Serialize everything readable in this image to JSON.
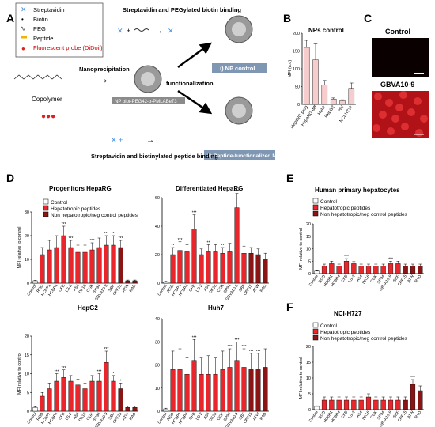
{
  "panel_labels": {
    "A": "A",
    "B": "B",
    "C": "C",
    "D": "D",
    "E": "E",
    "F": "F"
  },
  "schematic": {
    "legend": [
      "Streptavidin",
      "Biotin",
      "PEG",
      "Peptide",
      "Fluorescent probe (DiDoil)"
    ],
    "top_caption": "Streptavidin and PEGylated biotin binding",
    "bottom_caption": "Streptavidin and biotinylated peptide binding",
    "nanoprecipitation": "Nanoprecipitation",
    "functionalization": "functionalization",
    "copolymer": "Copolymer",
    "nanoparticle_label": "NP biot-PEG42-b-PMLABe73",
    "np_control": "i) NP control",
    "np_peptide": "ii) Peptide-functionalized NP"
  },
  "microscopy": {
    "control": "Control",
    "treated": "GBVA10-9"
  },
  "colors": {
    "control": "#ffffff",
    "hepatotropic": "#e8262b",
    "non_hepatotropic": "#8b1414",
    "np_bar": "#f6cccc",
    "dark_img": "#0a0000",
    "red_img": "#c8141a"
  },
  "chart_data": [
    {
      "id": "B",
      "type": "bar",
      "title": "NPs control",
      "ylabel": "MFI (a.u)",
      "ylim": [
        0,
        200
      ],
      "yticks": [
        0,
        50,
        100,
        150,
        200
      ],
      "categories": [
        "HepaRG prog",
        "HepaRG diff",
        "Huh7",
        "HepG2",
        "HH",
        "NCI-H727"
      ],
      "values": [
        160,
        125,
        55,
        15,
        10,
        45
      ],
      "errors": [
        20,
        45,
        12,
        3,
        3,
        15
      ]
    },
    {
      "id": "D1",
      "type": "bar",
      "title": "Progenitors HepaRG",
      "ylabel": "MFI relative to control",
      "ylim": [
        0,
        30
      ],
      "yticks": [
        0,
        10,
        20,
        30
      ],
      "categories": [
        "Control",
        "RGD",
        "HCBP1",
        "HCBP4",
        "CFB",
        "LS-2",
        "A54",
        "DK16",
        "CGK",
        "SP94",
        "GBVA10-9",
        "SBF",
        "CPF15",
        "ATW",
        "RAD"
      ],
      "values": [
        1,
        12,
        14,
        15,
        20,
        15,
        13,
        13,
        14,
        15,
        16,
        16,
        15,
        1,
        1
      ],
      "errors": [
        0.2,
        3,
        4,
        5,
        4,
        3,
        3,
        3,
        3,
        4,
        4,
        4,
        3,
        0.3,
        0.3
      ],
      "stars": [
        "",
        "",
        "",
        "",
        "***",
        "***",
        "",
        "",
        "***",
        "",
        "***",
        "***",
        "***",
        "",
        ""
      ],
      "groups": [
        "c",
        "h",
        "h",
        "h",
        "h",
        "h",
        "h",
        "h",
        "h",
        "h",
        "h",
        "h",
        "n",
        "n",
        "n"
      ]
    },
    {
      "id": "D2",
      "type": "bar",
      "title": "Differentiated HepaRG",
      "ylabel": "",
      "ylim": [
        0,
        60
      ],
      "yticks": [
        0,
        20,
        40,
        60
      ],
      "categories": [
        "Control",
        "RGD",
        "HCBP1",
        "HCBP4",
        "CFB",
        "LS-2",
        "A54",
        "DK16",
        "CGK",
        "SP94",
        "GBVA10-9",
        "SBF",
        "CPF15",
        "ATW",
        "RAD"
      ],
      "values": [
        1,
        20,
        23,
        22,
        38,
        20,
        22,
        22,
        21,
        22,
        53,
        21,
        21,
        20,
        17
      ],
      "errors": [
        0.3,
        5,
        6,
        5,
        10,
        4,
        5,
        5,
        4,
        6,
        10,
        5,
        4,
        4,
        4
      ],
      "stars": [
        "",
        "**",
        "***",
        "",
        "***",
        "",
        "**",
        "",
        "**",
        "",
        "***",
        "",
        "",
        "",
        ""
      ],
      "groups": [
        "c",
        "h",
        "h",
        "h",
        "h",
        "h",
        "h",
        "h",
        "h",
        "h",
        "h",
        "h",
        "n",
        "n",
        "n"
      ]
    },
    {
      "id": "D3",
      "type": "bar",
      "title": "HepG2",
      "ylabel": "MFI relative to control",
      "ylim": [
        0,
        20
      ],
      "yticks": [
        0,
        5,
        10,
        15,
        20
      ],
      "categories": [
        "Control",
        "RGD",
        "HCBP1",
        "HCBP4",
        "CFB",
        "LS-2",
        "A54",
        "DK16",
        "CGK",
        "SP94",
        "GBVA10-9",
        "SBF",
        "CPF15",
        "ATW",
        "RAD"
      ],
      "values": [
        1,
        4,
        6,
        8,
        9,
        8,
        7,
        6,
        8,
        8,
        13,
        8,
        6,
        1,
        1
      ],
      "errors": [
        0.2,
        1,
        1.5,
        2,
        2,
        1.5,
        1.5,
        1.5,
        1.5,
        2,
        3,
        1.5,
        1.5,
        0.3,
        0.3
      ],
      "stars": [
        "",
        "",
        "",
        "***",
        "***",
        "",
        "",
        "",
        "",
        "***",
        "***",
        "*",
        "*",
        "",
        ""
      ],
      "groups": [
        "c",
        "h",
        "h",
        "h",
        "h",
        "h",
        "h",
        "h",
        "h",
        "h",
        "h",
        "h",
        "n",
        "n",
        "n"
      ]
    },
    {
      "id": "D4",
      "type": "bar",
      "title": "Huh7",
      "ylabel": "",
      "ylim": [
        0,
        40
      ],
      "yticks": [
        0,
        10,
        20,
        30,
        40
      ],
      "categories": [
        "Control",
        "RGD",
        "HCBP1",
        "HCBP4",
        "CFB",
        "LS-2",
        "A54",
        "DK16",
        "CGK",
        "SP94",
        "GBVA10-9",
        "SBF",
        "CPF15",
        "ATW",
        "RAD"
      ],
      "values": [
        1,
        18,
        18,
        16,
        22,
        16,
        16,
        16,
        18,
        19,
        22,
        19,
        18,
        18,
        19
      ],
      "errors": [
        0.3,
        8,
        9,
        7,
        9,
        7,
        8,
        7,
        8,
        8,
        8,
        8,
        7,
        7,
        8
      ],
      "stars": [
        "",
        "",
        "",
        "",
        "***",
        "",
        "",
        "",
        "",
        "***",
        "***",
        "***",
        "***",
        "***",
        ""
      ],
      "groups": [
        "c",
        "h",
        "h",
        "h",
        "h",
        "h",
        "h",
        "h",
        "h",
        "h",
        "h",
        "h",
        "n",
        "n",
        "n"
      ]
    },
    {
      "id": "E",
      "type": "bar",
      "title": "Human primary hepatocytes",
      "ylabel": "MFI relative to control",
      "ylim": [
        0,
        20
      ],
      "yticks": [
        0,
        5,
        10,
        15,
        20
      ],
      "categories": [
        "Control",
        "RGD",
        "HCBP1",
        "HCBP4",
        "CFB",
        "LS-2",
        "A54",
        "DK16",
        "CGK",
        "SP94",
        "GBVA10-9",
        "SBF",
        "CPF15",
        "ATW",
        "RAD"
      ],
      "values": [
        1,
        3,
        4,
        3,
        5,
        4,
        3,
        3,
        3,
        3,
        4,
        4,
        3,
        3,
        3
      ],
      "errors": [
        0.2,
        0.8,
        1,
        0.8,
        1,
        0.8,
        0.8,
        0.8,
        0.8,
        0.8,
        1,
        1,
        0.8,
        0.8,
        0.8
      ],
      "stars": [
        "",
        "",
        "",
        "",
        "***",
        "",
        "",
        "",
        "",
        "",
        "***",
        "",
        "",
        "",
        ""
      ],
      "groups": [
        "c",
        "h",
        "h",
        "h",
        "h",
        "h",
        "h",
        "h",
        "h",
        "h",
        "h",
        "h",
        "n",
        "n",
        "n"
      ]
    },
    {
      "id": "F",
      "type": "bar",
      "title": "NCI-H727",
      "ylabel": "MFI relative to control",
      "ylim": [
        0,
        20
      ],
      "yticks": [
        0,
        5,
        10,
        15,
        20
      ],
      "categories": [
        "Control",
        "RGD",
        "HCBP1",
        "HCBP4",
        "CFB",
        "LS-2",
        "A54",
        "DK16",
        "CGK",
        "SP94",
        "GBVA10-9",
        "SBF",
        "CPF15",
        "ATW",
        "RAD"
      ],
      "values": [
        1,
        3,
        3,
        3,
        3,
        3,
        3,
        4,
        3,
        3,
        3,
        3,
        3,
        8,
        6
      ],
      "errors": [
        0.2,
        1,
        1,
        1,
        1,
        1,
        1,
        1,
        1,
        1,
        1,
        1,
        1,
        1.5,
        1.5
      ],
      "stars": [
        "",
        "",
        "",
        "",
        "",
        "",
        "",
        "",
        "",
        "",
        "",
        "",
        "",
        "***",
        ""
      ],
      "groups": [
        "c",
        "h",
        "h",
        "h",
        "h",
        "h",
        "h",
        "h",
        "h",
        "h",
        "h",
        "h",
        "n",
        "n",
        "n"
      ]
    }
  ],
  "legend": {
    "control": "Control",
    "hepatotropic": "Hepatotropic peptides",
    "non_hepatotropic": "Non hepatotropic/neg control peptides"
  }
}
